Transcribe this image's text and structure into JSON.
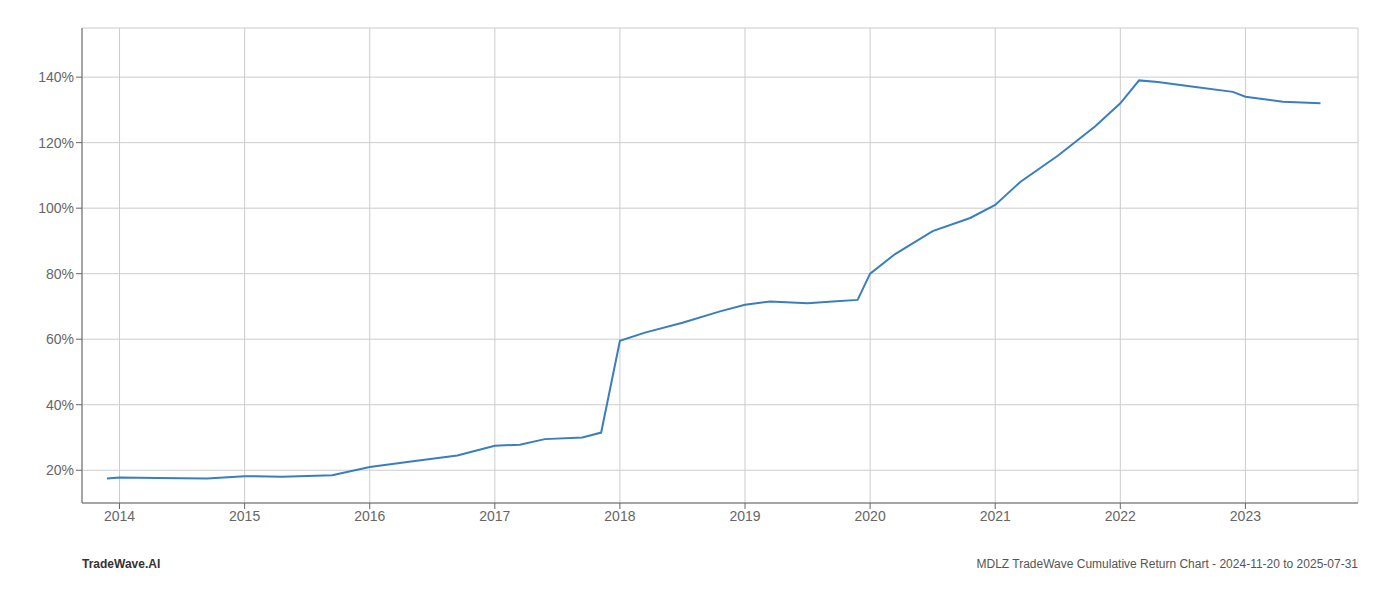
{
  "chart_data": {
    "type": "line",
    "x": [
      2013.9,
      2014.0,
      2014.3,
      2014.7,
      2015.0,
      2015.3,
      2015.7,
      2016.0,
      2016.3,
      2016.7,
      2017.0,
      2017.2,
      2017.4,
      2017.7,
      2017.85,
      2018.0,
      2018.2,
      2018.5,
      2018.8,
      2019.0,
      2019.2,
      2019.5,
      2019.7,
      2019.9,
      2020.0,
      2020.2,
      2020.5,
      2020.8,
      2021.0,
      2021.2,
      2021.5,
      2021.8,
      2022.0,
      2022.15,
      2022.3,
      2022.6,
      2022.9,
      2023.0,
      2023.3,
      2023.6
    ],
    "values": [
      17.5,
      17.8,
      17.6,
      17.5,
      18.2,
      18.0,
      18.5,
      21.0,
      22.5,
      24.5,
      27.5,
      27.8,
      29.5,
      30.0,
      31.5,
      59.5,
      62.0,
      65.0,
      68.5,
      70.5,
      71.5,
      71.0,
      71.5,
      72.0,
      80.0,
      86.0,
      93.0,
      97.0,
      101.0,
      108.0,
      116.0,
      125.0,
      132.0,
      139.0,
      138.5,
      137.0,
      135.5,
      134.0,
      132.5,
      132.0
    ],
    "color": "#3a7ebf",
    "xlim": [
      2013.7,
      2023.9
    ],
    "xticks": [
      2014,
      2015,
      2016,
      2017,
      2018,
      2019,
      2020,
      2021,
      2022,
      2023
    ],
    "ylim": [
      10,
      155
    ],
    "yticks": [
      {
        "value": 20,
        "label": "20%"
      },
      {
        "value": 40,
        "label": "40%"
      },
      {
        "value": 60,
        "label": "60%"
      },
      {
        "value": 80,
        "label": "80%"
      },
      {
        "value": 100,
        "label": "100%"
      },
      {
        "value": 120,
        "label": "120%"
      },
      {
        "value": 140,
        "label": "140%"
      }
    ],
    "grid": true,
    "annotations": [
      "TradeWave.AI",
      "MDLZ TradeWave Cumulative Return Chart - 2024-11-20 to 2025-07-31"
    ]
  }
}
